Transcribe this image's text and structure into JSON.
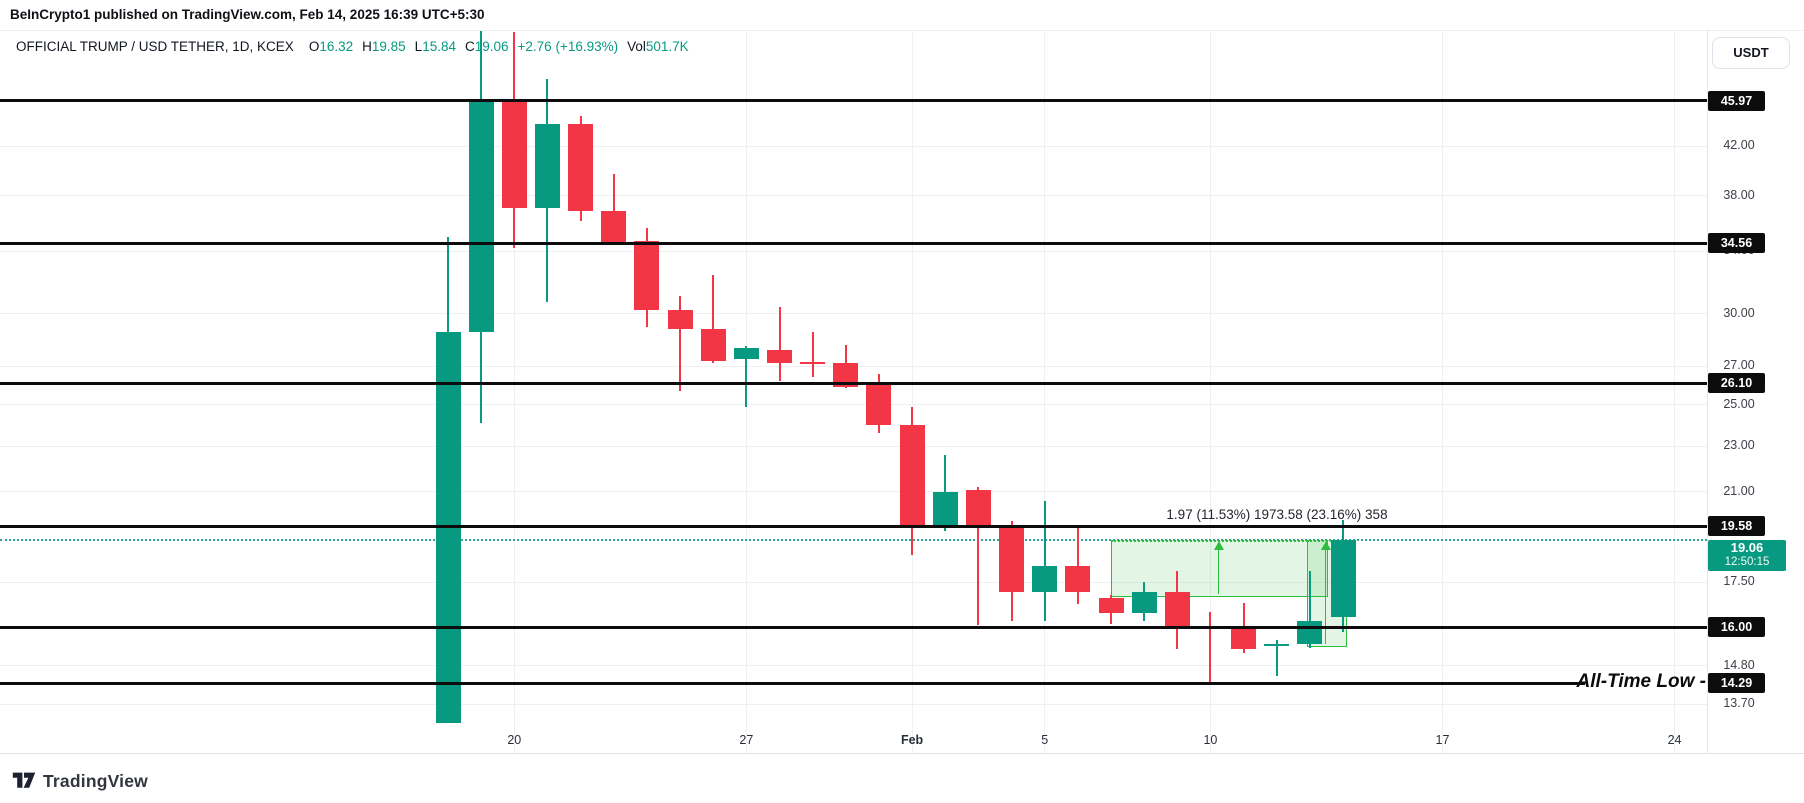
{
  "attribution": "BeInCrypto1 published on TradingView.com, Feb 14, 2025 16:39 UTC+5:30",
  "header": {
    "symbol": "OFFICIAL TRUMP / USD TETHER, 1D, KCEX",
    "fields": [
      {
        "k": "O",
        "v": "16.32"
      },
      {
        "k": "H",
        "v": "19.85"
      },
      {
        "k": "L",
        "v": "15.84"
      },
      {
        "k": "C",
        "v": "19.06"
      }
    ],
    "change": "+2.76 (+16.93%)",
    "vol_label": "Vol",
    "vol_value": "501.7K"
  },
  "price_axis": {
    "currency_button": "USDT",
    "current": {
      "p": 19.06,
      "t": "19.06",
      "countdown": "12:50:15"
    }
  },
  "annotations": {
    "measure_label": "1.97 (11.53%) 1973.58 (23.16%) 358",
    "atl_label": "All-Time Low -"
  },
  "footer": {
    "logo_text": "TradingView"
  },
  "colors": {
    "up": "#089981",
    "down": "#F23645",
    "tool_green": "#2CBE3C",
    "tool_fill": "rgba(60,190,70,0.14)",
    "level_black": "#0c0c0c",
    "current_badge": "#089981"
  },
  "chart_data": {
    "type": "candlestick",
    "title": "OFFICIAL TRUMP / USD TETHER",
    "exchange": "KCEX",
    "interval": "1D",
    "scale": "log",
    "ylim_visible": [
      13.0,
      53.0
    ],
    "grid": true,
    "candles": [
      {
        "date": "Jan 18",
        "o": 13.2,
        "h": 35.0,
        "l": 13.2,
        "c": 28.9
      },
      {
        "date": "Jan 19",
        "o": 28.9,
        "h": 52.9,
        "l": 24.1,
        "c": 46.1
      },
      {
        "date": "Jan 20",
        "o": 46.1,
        "h": 52.8,
        "l": 34.2,
        "c": 37.1
      },
      {
        "date": "Jan 21",
        "o": 37.1,
        "h": 48.0,
        "l": 30.7,
        "c": 43.9
      },
      {
        "date": "Jan 22",
        "o": 43.9,
        "h": 44.6,
        "l": 36.1,
        "c": 36.9
      },
      {
        "date": "Jan 23",
        "o": 36.9,
        "h": 39.7,
        "l": 34.4,
        "c": 34.5
      },
      {
        "date": "Jan 24",
        "o": 34.7,
        "h": 35.6,
        "l": 29.2,
        "c": 30.2
      },
      {
        "date": "Jan 25",
        "o": 30.2,
        "h": 31.1,
        "l": 25.7,
        "c": 29.1
      },
      {
        "date": "Jan 26",
        "o": 29.1,
        "h": 32.4,
        "l": 27.2,
        "c": 27.3
      },
      {
        "date": "Jan 27",
        "o": 27.4,
        "h": 28.1,
        "l": 24.9,
        "c": 28.0
      },
      {
        "date": "Jan 28",
        "o": 27.9,
        "h": 30.4,
        "l": 26.2,
        "c": 27.2
      },
      {
        "date": "Jan 29",
        "o": 27.25,
        "h": 28.9,
        "l": 26.4,
        "c": 27.1
      },
      {
        "date": "Jan 30",
        "o": 27.15,
        "h": 28.2,
        "l": 25.85,
        "c": 25.9
      },
      {
        "date": "Jan 31",
        "o": 26.0,
        "h": 26.6,
        "l": 23.6,
        "c": 24.0
      },
      {
        "date": "Feb 1",
        "o": 24.0,
        "h": 24.9,
        "l": 18.5,
        "c": 19.65
      },
      {
        "date": "Feb 2",
        "o": 19.65,
        "h": 22.6,
        "l": 19.4,
        "c": 21.0
      },
      {
        "date": "Feb 3",
        "o": 21.05,
        "h": 21.2,
        "l": 16.05,
        "c": 19.6
      },
      {
        "date": "Feb 4",
        "o": 19.6,
        "h": 19.8,
        "l": 16.2,
        "c": 17.15
      },
      {
        "date": "Feb 5",
        "o": 17.15,
        "h": 20.6,
        "l": 16.2,
        "c": 18.1
      },
      {
        "date": "Feb 6",
        "o": 18.1,
        "h": 19.5,
        "l": 16.75,
        "c": 17.15
      },
      {
        "date": "Feb 7",
        "o": 16.95,
        "h": 17.05,
        "l": 16.1,
        "c": 16.45
      },
      {
        "date": "Feb 8",
        "o": 16.45,
        "h": 17.5,
        "l": 16.2,
        "c": 17.15
      },
      {
        "date": "Feb 9",
        "o": 17.15,
        "h": 17.9,
        "l": 15.3,
        "c": 16.0
      },
      {
        "date": "Feb 10",
        "o": 16.05,
        "h": 16.5,
        "l": 14.3,
        "c": 15.95
      },
      {
        "date": "Feb 11",
        "o": 15.95,
        "h": 16.8,
        "l": 15.2,
        "c": 15.3
      },
      {
        "date": "Feb 12",
        "o": 15.4,
        "h": 15.6,
        "l": 14.5,
        "c": 15.45
      },
      {
        "date": "Feb 13",
        "o": 15.45,
        "h": 17.9,
        "l": 15.35,
        "c": 16.2
      },
      {
        "date": "Feb 14",
        "o": 16.32,
        "h": 19.85,
        "l": 15.84,
        "c": 19.06
      }
    ],
    "levels": [
      {
        "p": 45.97,
        "t": "45.97"
      },
      {
        "p": 34.56,
        "t": "34.56"
      },
      {
        "p": 26.1,
        "t": "26.10"
      },
      {
        "p": 19.58,
        "t": "19.58"
      },
      {
        "p": 16.0,
        "t": "16.00"
      },
      {
        "p": 14.29,
        "t": "14.29",
        "note": "all-time-low"
      }
    ],
    "y_ticks": [
      {
        "p": 42.0,
        "t": "42.00"
      },
      {
        "p": 38.0,
        "t": "38.00"
      },
      {
        "p": 34.0,
        "t": "34.00"
      },
      {
        "p": 30.0,
        "t": "30.00"
      },
      {
        "p": 27.0,
        "t": "27.00"
      },
      {
        "p": 25.0,
        "t": "25.00"
      },
      {
        "p": 23.0,
        "t": "23.00"
      },
      {
        "p": 21.0,
        "t": "21.00"
      },
      {
        "p": 17.5,
        "t": "17.50"
      },
      {
        "p": 14.8,
        "t": "14.80"
      },
      {
        "p": 13.7,
        "t": "13.70"
      }
    ],
    "x_ticks": [
      {
        "label": "20",
        "i": 2,
        "bold": false
      },
      {
        "label": "27",
        "i": 9,
        "bold": false
      },
      {
        "label": "Feb",
        "i": 14,
        "bold": true
      },
      {
        "label": "5",
        "i": 18,
        "bold": false
      },
      {
        "label": "10",
        "i": 23,
        "bold": false
      },
      {
        "label": "17",
        "i": 30,
        "bold": false
      },
      {
        "label": "24",
        "i": 37,
        "bold": false
      }
    ],
    "measurement_boxes": [
      {
        "i1": 20.0,
        "i2": 26.5,
        "top_price": 19.06,
        "bottom_price": 17.09
      },
      {
        "i1": 25.9,
        "i2": 27.05,
        "top_price": 19.06,
        "bottom_price": 15.48
      }
    ],
    "current_price": 19.06
  }
}
